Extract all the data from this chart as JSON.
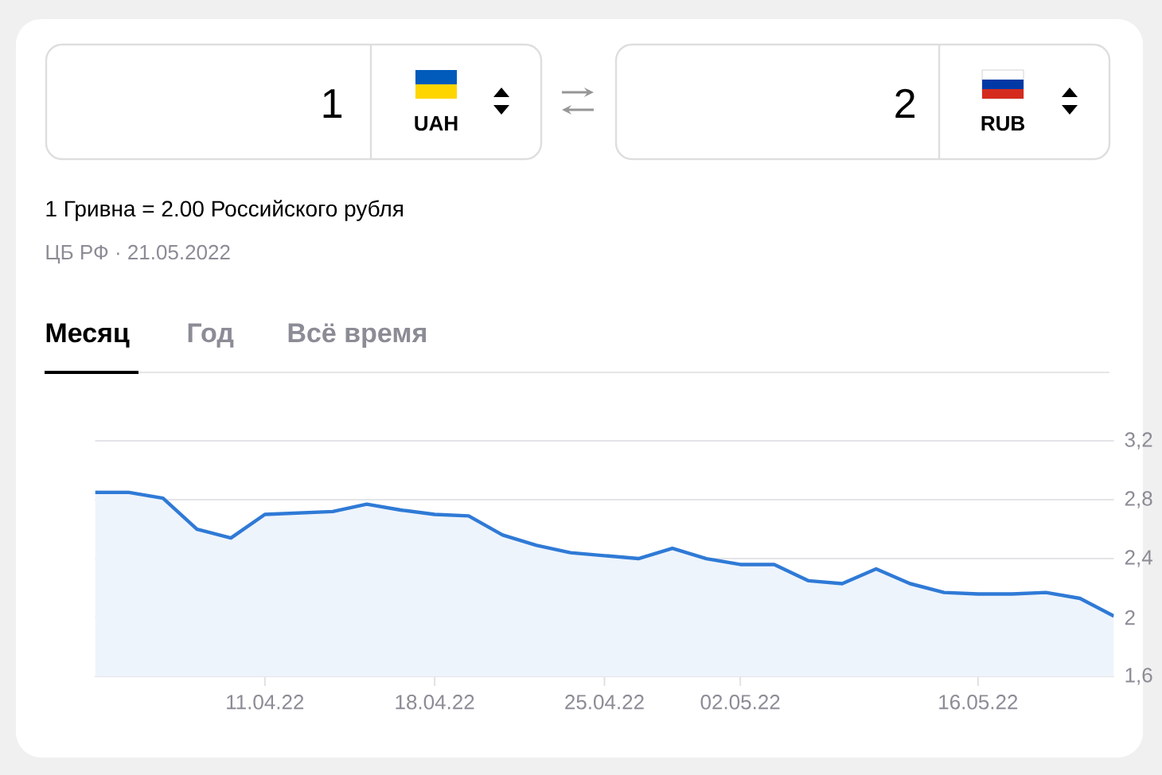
{
  "chart_data": {
    "type": "area",
    "categories": [
      null,
      null,
      null,
      null,
      null,
      "11.04.22",
      null,
      null,
      null,
      null,
      "18.04.22",
      null,
      null,
      null,
      null,
      "25.04.22",
      null,
      null,
      null,
      "02.05.22",
      null,
      null,
      null,
      null,
      null,
      null,
      "16.05.22",
      null,
      null,
      null,
      null
    ],
    "series": [
      {
        "color": "#2f7ad6",
        "values": [
          2.85,
          2.85,
          2.81,
          2.6,
          2.54,
          2.7,
          2.71,
          2.72,
          2.77,
          2.73,
          2.7,
          2.69,
          2.56,
          2.49,
          2.44,
          2.42,
          2.4,
          2.47,
          2.4,
          2.36,
          2.36,
          2.25,
          2.23,
          2.33,
          2.23,
          2.17,
          2.16,
          2.16,
          2.17,
          2.13,
          2.01
        ]
      }
    ],
    "ylim": [
      1.6,
      3.2
    ],
    "yticks": [
      {
        "value": 1.6,
        "label": "1,6"
      },
      {
        "value": 2,
        "label": "2"
      },
      {
        "value": 2.4,
        "label": "2,4"
      },
      {
        "value": 2.8,
        "label": "2,8"
      },
      {
        "value": 3.2,
        "label": "3,2"
      }
    ],
    "grid": "y",
    "annotations": [
      "1",
      "UAH",
      "2",
      "RUB",
      "1 Гривна = 2.00 Российского рубля",
      "ЦБ РФ · 21.05.2022",
      "Месяц",
      "Год",
      "Всё время"
    ]
  }
}
